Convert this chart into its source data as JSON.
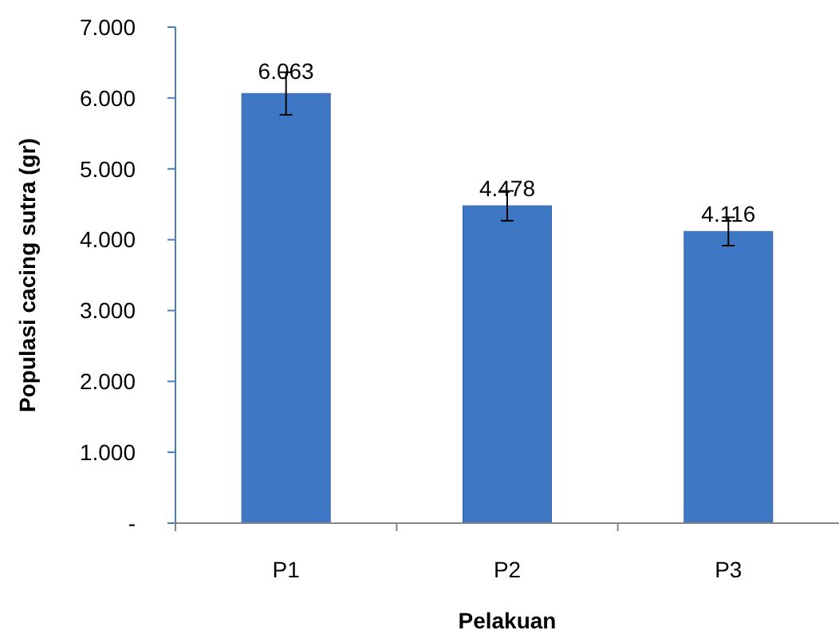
{
  "chart_data": {
    "type": "bar",
    "xlabel": "Pelakuan",
    "ylabel": "Populasi cacing sutra (gr)",
    "categories": [
      "P1",
      "P2",
      "P3"
    ],
    "values": [
      6063,
      4478,
      4116
    ],
    "value_labels": [
      "6.063",
      "4.478",
      "4.116"
    ],
    "errors": [
      300,
      210,
      200
    ],
    "color": "#3e78c4",
    "ylim": [
      0,
      7000
    ],
    "yticks": [
      {
        "value": 0,
        "label": "-"
      },
      {
        "value": 1000,
        "label": "1.000"
      },
      {
        "value": 2000,
        "label": "2.000"
      },
      {
        "value": 3000,
        "label": "3.000"
      },
      {
        "value": 4000,
        "label": "4.000"
      },
      {
        "value": 5000,
        "label": "5.000"
      },
      {
        "value": 6000,
        "label": "6.000"
      },
      {
        "value": 7000,
        "label": "7.000"
      }
    ],
    "grid": false
  }
}
